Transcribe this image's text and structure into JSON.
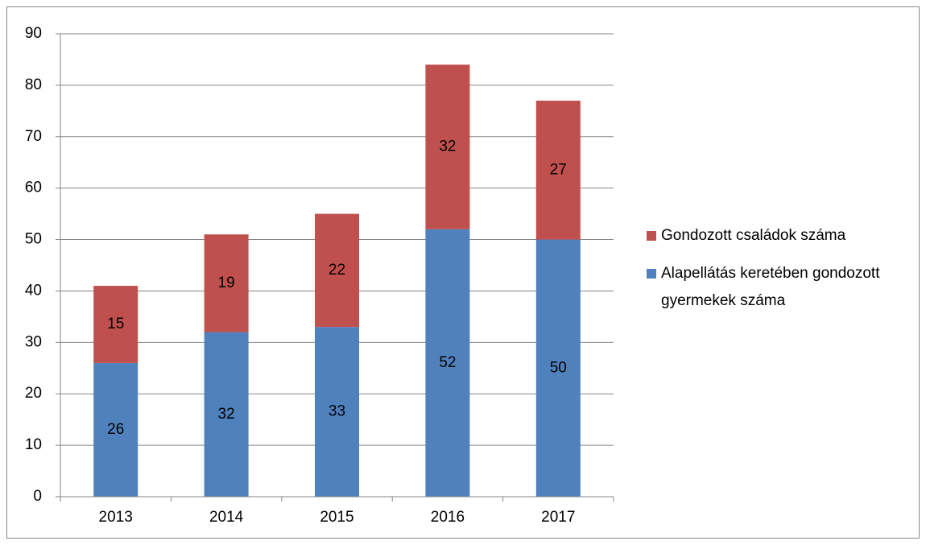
{
  "chart_data": {
    "type": "stacked_bar",
    "categories": [
      "2013",
      "2014",
      "2015",
      "2016",
      "2017"
    ],
    "series": [
      {
        "name": "Alapellátás keretében gondozott gyermekek száma",
        "color": "#4f81bd",
        "values": [
          26,
          32,
          33,
          52,
          50
        ]
      },
      {
        "name": "Gondozott családok száma",
        "color": "#c0504d",
        "values": [
          15,
          19,
          22,
          32,
          27
        ]
      }
    ],
    "ylim": [
      0,
      90
    ],
    "yticks": [
      0,
      10,
      20,
      30,
      40,
      50,
      60,
      70,
      80,
      90
    ],
    "grid": true,
    "legend": "right"
  }
}
